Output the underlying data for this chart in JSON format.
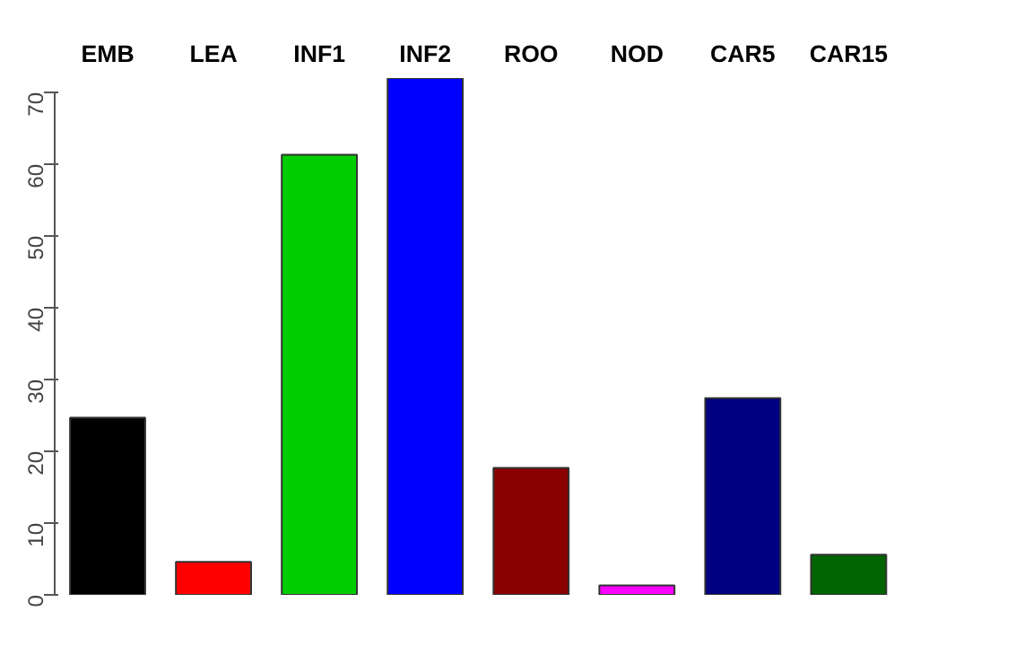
{
  "chart_data": {
    "type": "bar",
    "categories": [
      "EMB",
      "LEA",
      "INF1",
      "INF2",
      "ROO",
      "NOD",
      "CAR5",
      "CAR15"
    ],
    "values": [
      24.7,
      4.6,
      61.3,
      72.0,
      17.7,
      1.3,
      27.4,
      5.6
    ],
    "colors": [
      "#000000",
      "#ff0000",
      "#00cd00",
      "#0000ff",
      "#8b0000",
      "#ff00ff",
      "#000080",
      "#006400"
    ],
    "ylim": [
      0,
      72
    ],
    "yticks": [
      0,
      10,
      20,
      30,
      40,
      50,
      60,
      70
    ],
    "grid": false
  }
}
